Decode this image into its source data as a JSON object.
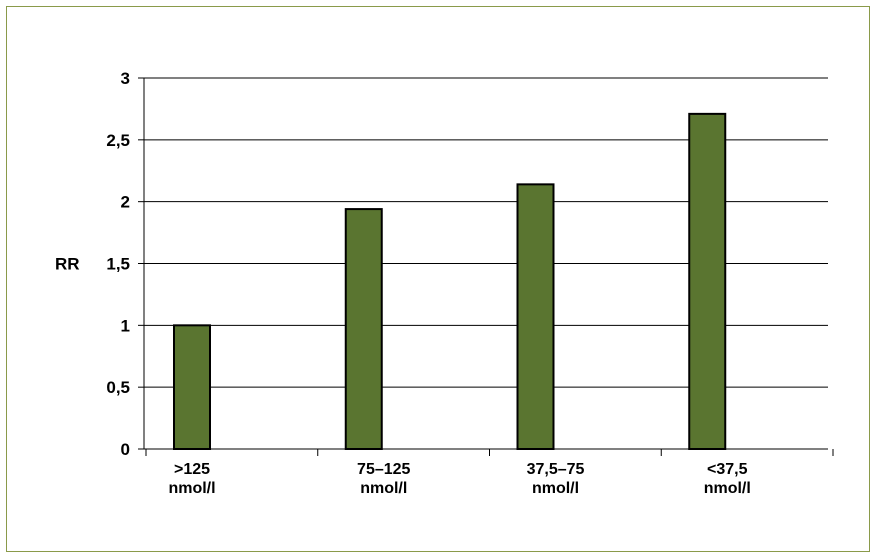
{
  "chart_data": {
    "type": "bar",
    "title": "",
    "xlabel": "",
    "ylabel": "RR",
    "categories": [
      [
        ">125",
        "nmol/l"
      ],
      [
        "75–125",
        "nmol/l"
      ],
      [
        "37,5–75",
        "nmol/l"
      ],
      [
        "<37,5",
        "nmol/l"
      ]
    ],
    "values": [
      1.0,
      1.94,
      2.14,
      2.71
    ],
    "ylim": [
      0,
      3
    ],
    "yticks": [
      0,
      0.5,
      1,
      1.5,
      2,
      2.5,
      3
    ],
    "ytick_labels": [
      "0",
      "0,5",
      "1",
      "1,5",
      "2",
      "2,5",
      "3"
    ],
    "grid": true,
    "colors": {
      "bar_fill": "#5a7530",
      "bar_stroke": "#000000",
      "frame": "#8a9a4a"
    }
  }
}
